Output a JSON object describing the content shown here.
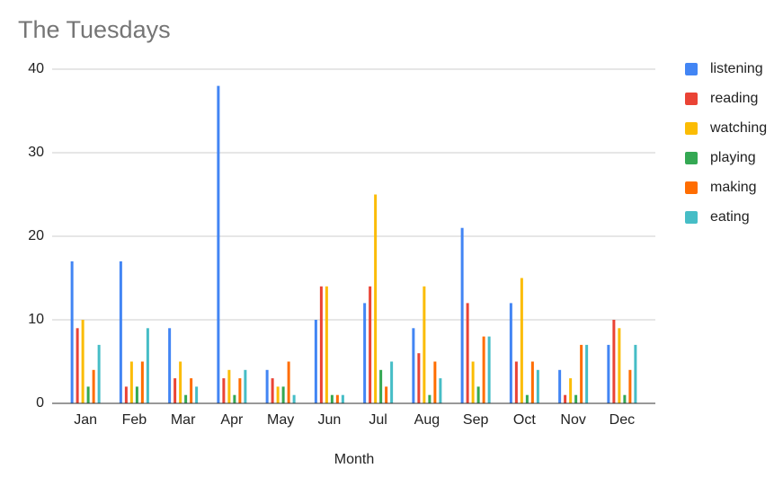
{
  "chart_data": {
    "type": "bar",
    "title": "The Tuesdays",
    "x_label": "Month",
    "categories": [
      "Jan",
      "Feb",
      "Mar",
      "Apr",
      "May",
      "Jun",
      "Jul",
      "Aug",
      "Sep",
      "Oct",
      "Nov",
      "Dec"
    ],
    "series": [
      {
        "name": "listening",
        "color": "#4285f4",
        "values": [
          17,
          17,
          9,
          38,
          4,
          10,
          12,
          9,
          21,
          12,
          4,
          7
        ]
      },
      {
        "name": "reading",
        "color": "#ea4335",
        "values": [
          9,
          2,
          3,
          3,
          3,
          14,
          14,
          6,
          12,
          5,
          1,
          10
        ]
      },
      {
        "name": "watching",
        "color": "#fbbc04",
        "values": [
          10,
          5,
          5,
          4,
          2,
          14,
          25,
          14,
          5,
          15,
          3,
          9
        ]
      },
      {
        "name": "playing",
        "color": "#34a853",
        "values": [
          2,
          2,
          1,
          1,
          2,
          1,
          4,
          1,
          2,
          1,
          1,
          1
        ]
      },
      {
        "name": "making",
        "color": "#ff6d01",
        "values": [
          4,
          5,
          3,
          3,
          5,
          1,
          2,
          5,
          8,
          5,
          7,
          4
        ]
      },
      {
        "name": "eating",
        "color": "#46bdc6",
        "values": [
          7,
          9,
          2,
          4,
          1,
          1,
          5,
          3,
          8,
          4,
          7,
          7
        ]
      }
    ],
    "ylim": [
      0,
      40
    ],
    "yticks": [
      0,
      10,
      20,
      30,
      40
    ],
    "grid": true,
    "legend": "right"
  }
}
